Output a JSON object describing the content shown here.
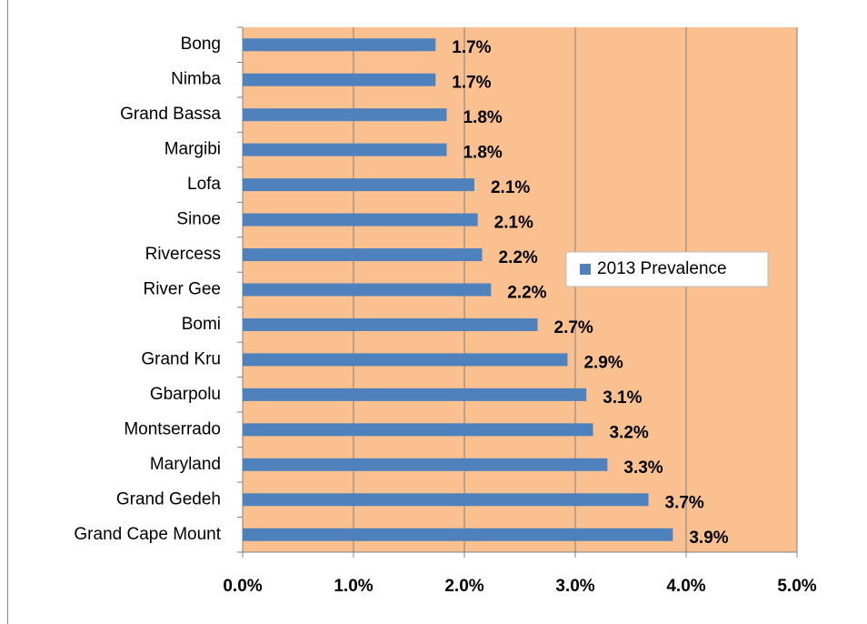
{
  "chart_data": {
    "type": "barh",
    "categories": [
      "Bong",
      "Nimba",
      "Grand Bassa",
      "Margibi",
      "Lofa",
      "Sinoe",
      "Rivercess",
      "River Gee",
      "Bomi",
      "Grand Kru",
      "Gbarpolu",
      "Montserrado",
      "Maryland",
      "Grand Gedeh",
      "Grand Cape Mount"
    ],
    "series": [
      {
        "name": "2013 Prevalence",
        "color": "#4f81bd",
        "values": [
          1.74,
          1.74,
          1.84,
          1.84,
          2.09,
          2.12,
          2.16,
          2.24,
          2.66,
          2.93,
          3.1,
          3.16,
          3.29,
          3.66,
          3.88
        ],
        "value_labels": [
          "1.7%",
          "1.7%",
          "1.8%",
          "1.8%",
          "2.1%",
          "2.1%",
          "2.2%",
          "2.2%",
          "2.7%",
          "2.9%",
          "3.1%",
          "3.2%",
          "3.3%",
          "3.7%",
          "3.9%"
        ]
      }
    ],
    "xlim": [
      0,
      5
    ],
    "xticks": [
      {
        "value": 0,
        "label": "0.0%"
      },
      {
        "value": 1,
        "label": "1.0%"
      },
      {
        "value": 2,
        "label": "2.0%"
      },
      {
        "value": 3,
        "label": "3.0%"
      },
      {
        "value": 4,
        "label": "4.0%"
      },
      {
        "value": 5,
        "label": "5.0%"
      }
    ],
    "grid": true,
    "plot_background": "#fac090",
    "legend": "right"
  }
}
